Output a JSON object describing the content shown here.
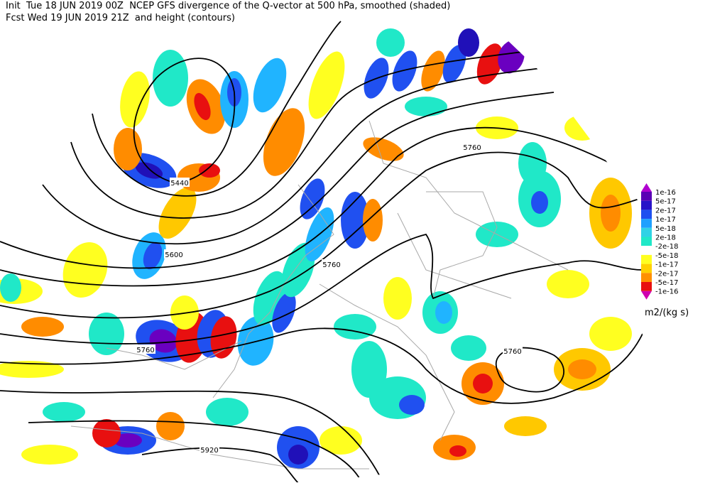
{
  "header": {
    "line1": "Init  Tue 18 JUN 2019 00Z  NCEP GFS divergence of the Q-vector at 500 hPa, smoothed (shaded)",
    "line2": "Fcst Wed 19 JUN 2019 21Z  and height (contours)"
  },
  "contour_labels": [
    "5440",
    "5600",
    "5760",
    "5760",
    "5760",
    "5760",
    "5920"
  ],
  "colorbar": {
    "labels": [
      "1e-16",
      "5e-17",
      "2e-17",
      "1e-17",
      "5e-18",
      "2e-18",
      "-2e-18",
      "-5e-18",
      "-1e-17",
      "-2e-17",
      "-5e-17",
      "-1e-16"
    ],
    "units": "m2/(kg s)"
  }
}
